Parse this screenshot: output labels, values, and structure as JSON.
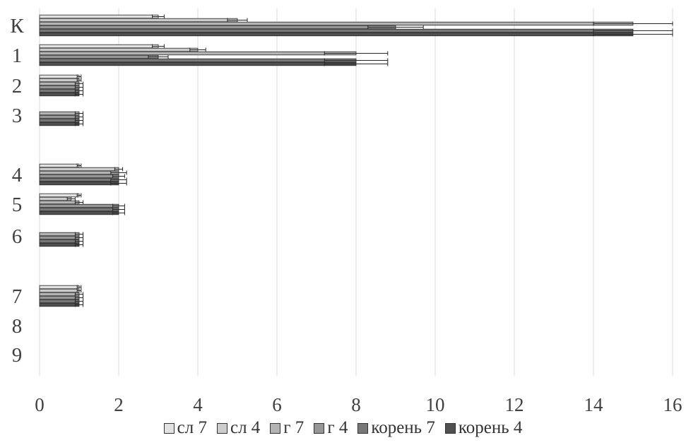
{
  "chart_data": {
    "type": "bar",
    "orientation": "horizontal",
    "categories": [
      "К",
      "1",
      "2",
      "3",
      "4",
      "5",
      "6",
      "7",
      "8",
      "9"
    ],
    "x_ticks": [
      "0",
      "2",
      "4",
      "6",
      "8",
      "10",
      "12",
      "14",
      "16"
    ],
    "xlim": [
      0,
      16
    ],
    "grid": "vertical",
    "legend_position": "bottom",
    "series": [
      {
        "name": "сл 7",
        "color": "#e2e2e2",
        "values": [
          3.0,
          3.0,
          1.0,
          null,
          1.0,
          1.0,
          null,
          1.0,
          null,
          null
        ],
        "errors": [
          0.15,
          0.15,
          0.05,
          null,
          0.05,
          0.05,
          null,
          0.05,
          null,
          null
        ]
      },
      {
        "name": "сл 4",
        "color": "#cccccc",
        "values": [
          5.0,
          4.0,
          1.0,
          null,
          2.0,
          0.8,
          null,
          1.0,
          null,
          null
        ],
        "errors": [
          0.25,
          0.2,
          0.05,
          null,
          0.1,
          0.1,
          null,
          0.05,
          null,
          null
        ]
      },
      {
        "name": "г 7",
        "color": "#b4b4b4",
        "values": [
          15.0,
          8.0,
          1.0,
          1.0,
          2.0,
          1.0,
          1.0,
          1.0,
          null,
          null
        ],
        "errors": [
          1.0,
          0.8,
          0.1,
          0.1,
          0.2,
          0.1,
          0.1,
          0.1,
          null,
          null
        ]
      },
      {
        "name": "г 4",
        "color": "#969696",
        "values": [
          9.0,
          3.0,
          1.0,
          1.0,
          2.0,
          2.0,
          1.0,
          1.0,
          null,
          null
        ],
        "errors": [
          0.7,
          0.25,
          0.1,
          0.1,
          0.15,
          0.15,
          0.1,
          0.1,
          null,
          null
        ]
      },
      {
        "name": "корень 7",
        "color": "#787878",
        "values": [
          15.0,
          8.0,
          1.0,
          1.0,
          2.0,
          2.0,
          1.0,
          1.0,
          null,
          null
        ],
        "errors": [
          1.0,
          0.8,
          0.1,
          0.1,
          0.2,
          0.15,
          0.1,
          0.1,
          null,
          null
        ]
      },
      {
        "name": "корень 4",
        "color": "#505050",
        "values": [
          15.0,
          8.0,
          1.0,
          1.0,
          2.0,
          2.0,
          1.0,
          1.0,
          null,
          null
        ],
        "errors": [
          1.0,
          0.8,
          0.1,
          0.1,
          0.2,
          0.15,
          0.1,
          0.1,
          null,
          null
        ]
      }
    ]
  }
}
